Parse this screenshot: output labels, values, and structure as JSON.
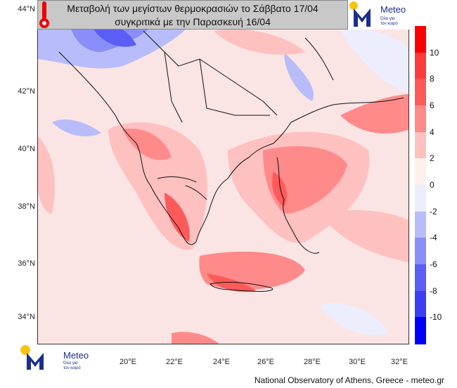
{
  "title": {
    "line1": "Μεταβολή των μεγίστων θερμοκρασιών το Σάββατο 17/04",
    "line2": "συγκριτικά με την Παρασκευή 16/04"
  },
  "logo": {
    "name": "Meteo",
    "tagline_1": "Όλα για",
    "tagline_2": "τον καιρό",
    "icon": "thermometer-icon"
  },
  "axes": {
    "lat_labels": [
      "44°N",
      "42°N",
      "40°N",
      "38°N",
      "36°N",
      "34°N"
    ],
    "lon_labels": [
      "20°E",
      "22°E",
      "24°E",
      "26°E",
      "28°E",
      "30°E",
      "32°E"
    ]
  },
  "colorbar": {
    "labels": [
      "10",
      "8",
      "6",
      "4",
      "2",
      "0",
      "-2",
      "-4",
      "-6",
      "-8",
      "-10"
    ],
    "colors": [
      "#ff0000",
      "#ff3c3c",
      "#ff5a5a",
      "#ff8a8a",
      "#ffc0c0",
      "#fff0f0",
      "#eceefd",
      "#b8bcfb",
      "#8a8ef8",
      "#5a5ef6",
      "#3c3ef4",
      "#0000ff"
    ]
  },
  "footer": {
    "credit": "National Observatory of Athens, Greece - meteo.gr"
  }
}
